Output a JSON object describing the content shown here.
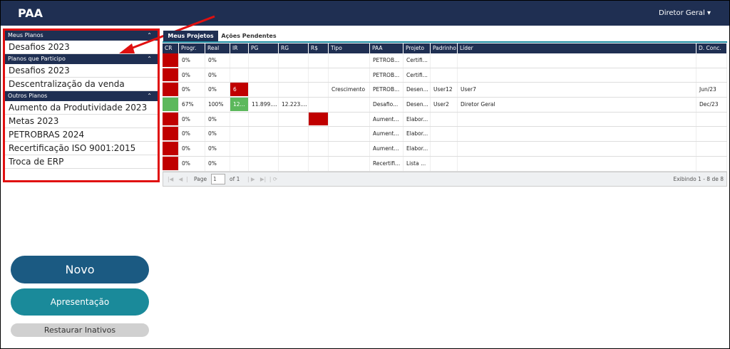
{
  "header": {
    "title": "PAA",
    "user_menu": "Diretor Geral"
  },
  "sidebar": {
    "sections": [
      {
        "title": "Meus Planos",
        "items": [
          "Desafios 2023"
        ]
      },
      {
        "title": "Planos que Participo",
        "items": [
          "Desafios 2023",
          "Descentralização da venda"
        ]
      },
      {
        "title": "Outros Planos",
        "items": [
          "Aumento da Produtividade 2023",
          "Metas 2023",
          "PETROBRAS 2024",
          "Recertificação ISO 9001:2015",
          "Troca de ERP"
        ]
      }
    ]
  },
  "tabs": [
    "Meus Projetos",
    "Ações Pendentes"
  ],
  "table": {
    "columns": [
      "CR",
      "Progr.",
      "Real",
      "IR",
      "PG",
      "RG",
      "R$",
      "Tipo",
      "PAA",
      "Projeto",
      "Padrinho",
      "Líder",
      "D. Conc."
    ],
    "rows": [
      {
        "cells": [
          null,
          "0%",
          "0%",
          null,
          null,
          null,
          null,
          null,
          "PETROB...",
          "Certifi...",
          null,
          null,
          null
        ],
        "fills": [
          "#c00000",
          null,
          null,
          null,
          null,
          null,
          null,
          null,
          null,
          null,
          null,
          null,
          null
        ]
      },
      {
        "cells": [
          null,
          "0%",
          "0%",
          null,
          null,
          null,
          null,
          null,
          "PETROB...",
          "Certifi...",
          null,
          null,
          null
        ],
        "fills": [
          "#c00000",
          null,
          null,
          null,
          null,
          null,
          null,
          null,
          null,
          null,
          null,
          null,
          null
        ]
      },
      {
        "cells": [
          null,
          "0%",
          "0%",
          "6",
          null,
          null,
          null,
          "Crescimento",
          "PETROB...",
          "Desen...",
          "User12",
          "User7",
          "Jun/23"
        ],
        "fills": [
          "#c00000",
          null,
          null,
          "#c00000",
          null,
          null,
          null,
          null,
          null,
          null,
          null,
          null,
          null
        ]
      },
      {
        "cells": [
          null,
          "67%",
          "100%",
          "12...",
          "11.899....",
          "12.223....",
          null,
          null,
          "Desafio...",
          "Desen...",
          "User2",
          "Diretor Geral",
          "Dec/23"
        ],
        "fills": [
          "#5cb85c",
          null,
          null,
          "#5cb85c",
          null,
          null,
          null,
          null,
          null,
          null,
          null,
          null,
          null
        ]
      },
      {
        "cells": [
          null,
          "0%",
          "0%",
          null,
          null,
          null,
          null,
          null,
          "Aument...",
          "Elabor...",
          null,
          null,
          null
        ],
        "fills": [
          "#c00000",
          null,
          null,
          null,
          null,
          null,
          "#c00000",
          null,
          null,
          null,
          null,
          null,
          null
        ]
      },
      {
        "cells": [
          null,
          "0%",
          "0%",
          null,
          null,
          null,
          null,
          null,
          "Aument...",
          "Elabor...",
          null,
          null,
          null
        ],
        "fills": [
          "#c00000",
          null,
          null,
          null,
          null,
          null,
          null,
          null,
          null,
          null,
          null,
          null,
          null
        ]
      },
      {
        "cells": [
          null,
          "0%",
          "0%",
          null,
          null,
          null,
          null,
          null,
          "Aument...",
          "Elabor...",
          null,
          null,
          null
        ],
        "fills": [
          "#c00000",
          null,
          null,
          null,
          null,
          null,
          null,
          null,
          null,
          null,
          null,
          null,
          null
        ]
      },
      {
        "cells": [
          null,
          "0%",
          "0%",
          null,
          null,
          null,
          null,
          null,
          "Recertifi...",
          "Lista ...",
          null,
          null,
          null
        ],
        "fills": [
          "#c00000",
          null,
          null,
          null,
          null,
          null,
          null,
          null,
          null,
          null,
          null,
          null,
          null
        ]
      }
    ]
  },
  "pager": {
    "page_label": "Page",
    "page_value": "1",
    "of_label": "of 1",
    "summary": "Exibindo 1 - 8 de 8"
  },
  "buttons": {
    "new": "Novo",
    "presentation": "Apresentação",
    "restore": "Restaurar Inativos"
  }
}
